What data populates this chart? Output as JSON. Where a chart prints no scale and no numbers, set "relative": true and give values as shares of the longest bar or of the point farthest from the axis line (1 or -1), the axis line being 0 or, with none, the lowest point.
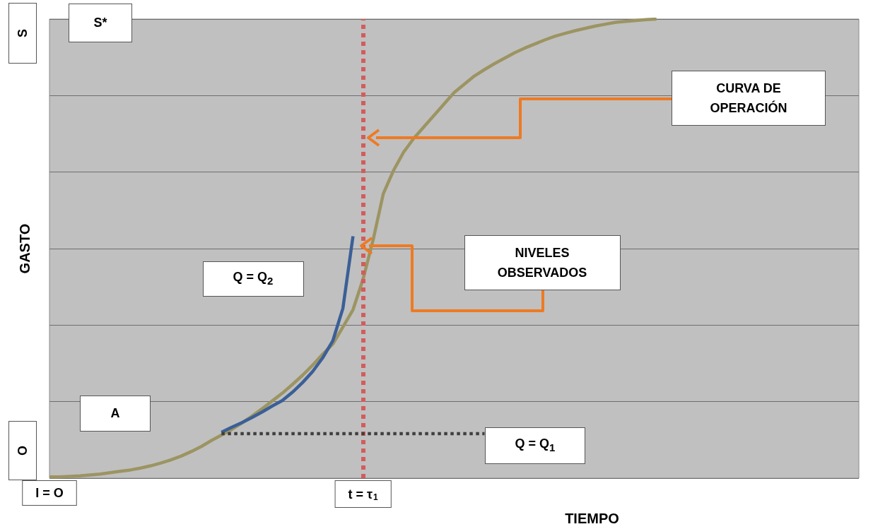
{
  "chart_data": {
    "type": "line",
    "relative": true,
    "xlabel": "TIEMPO",
    "ylabel": "GASTO",
    "grid": "y",
    "marker": "none",
    "categories": [
      "I = O",
      null,
      null,
      null,
      null,
      null,
      null,
      null,
      null,
      null,
      null,
      null,
      null,
      null,
      null,
      null,
      null,
      null,
      null,
      null,
      null,
      null,
      null,
      null,
      null,
      null,
      null,
      null,
      null,
      null,
      null,
      "t = τ$_{1}$",
      null,
      null,
      null,
      null,
      null,
      null,
      null,
      null,
      null,
      null,
      null,
      null,
      null,
      null,
      null,
      null,
      null,
      null,
      null,
      null,
      null,
      null,
      null,
      null,
      null,
      null,
      null,
      null,
      null,
      null,
      null,
      null,
      null,
      null,
      null,
      null,
      null,
      null,
      null,
      null,
      null,
      null,
      null,
      null,
      null,
      null,
      null,
      null,
      null
    ],
    "series": [
      {
        "color": "#9c9462",
        "line_style": "solid",
        "values": [
          0.003,
          0.003,
          0.004,
          0.005,
          0.007,
          0.009,
          0.012,
          0.015,
          0.018,
          0.022,
          0.027,
          0.033,
          0.04,
          0.048,
          0.058,
          0.069,
          0.082,
          0.094,
          0.106,
          0.12,
          0.135,
          0.151,
          0.168,
          0.185,
          0.204,
          0.224,
          0.246,
          0.27,
          0.292,
          0.329,
          0.367,
          0.434,
          0.52,
          0.62,
          0.67,
          0.71,
          0.74,
          0.765,
          0.79,
          0.815,
          0.84,
          0.858,
          0.876,
          0.89,
          0.903,
          0.915,
          0.927,
          0.937,
          0.946,
          0.955,
          0.963,
          0.969,
          0.975,
          0.98,
          0.985,
          0.989,
          0.993,
          0.995,
          0.997,
          0.999,
          1,
          null,
          null,
          null,
          null,
          null,
          null,
          null,
          null,
          null,
          null,
          null,
          null,
          null,
          null,
          null,
          null,
          null,
          null,
          null,
          null
        ]
      },
      {
        "color": "#3b5f97",
        "line_style": "solid",
        "values": [
          null,
          null,
          null,
          null,
          null,
          null,
          null,
          null,
          null,
          null,
          null,
          null,
          null,
          null,
          null,
          null,
          null,
          0.1,
          0.111,
          0.121,
          0.132,
          0.144,
          0.157,
          0.169,
          0.187,
          0.208,
          0.232,
          0.262,
          0.299,
          0.37,
          0.527,
          null,
          null,
          null,
          null,
          null,
          null,
          null,
          null,
          null,
          null,
          null,
          null,
          null,
          null,
          null,
          null,
          null,
          null,
          null,
          null,
          null,
          null,
          null,
          null,
          null,
          null,
          null,
          null,
          null,
          null,
          null,
          null,
          null,
          null,
          null,
          null,
          null,
          null,
          null,
          null,
          null,
          null,
          null,
          null,
          null,
          null,
          null,
          null,
          null,
          null
        ]
      },
      {
        "color": "#3f3f3f",
        "line_style": "dotted",
        "values": [
          null,
          null,
          null,
          null,
          null,
          null,
          null,
          null,
          null,
          null,
          null,
          null,
          null,
          null,
          null,
          null,
          null,
          0.097,
          0.097,
          0.097,
          0.097,
          0.097,
          0.097,
          0.097,
          0.097,
          0.097,
          0.097,
          0.097,
          0.097,
          0.097,
          0.097,
          0.097,
          0.097,
          0.097,
          0.097,
          0.097,
          0.097,
          0.097,
          0.097,
          0.097,
          0.097,
          0.097,
          0.097,
          0.097,
          null,
          null,
          null,
          null,
          null,
          null,
          null,
          null,
          null,
          null,
          null,
          null,
          null,
          null,
          null,
          null,
          null,
          null,
          null,
          null,
          null,
          null,
          null,
          null,
          null,
          null,
          null,
          null,
          null,
          null,
          null,
          null,
          null,
          null,
          null,
          null,
          null
        ]
      }
    ],
    "ref_lines": [
      {
        "axis": "x",
        "value": "t = τ$_{1}$",
        "color": "#d35c5c",
        "line_style": "dotted"
      }
    ],
    "annotations": [
      "S",
      "O",
      "S*",
      "A",
      "Q = Q$_{2}$",
      "Q = Q$_{1}$",
      "CURVA DE OPERACIÓN",
      "NIVELES OBSERVADOS"
    ]
  }
}
